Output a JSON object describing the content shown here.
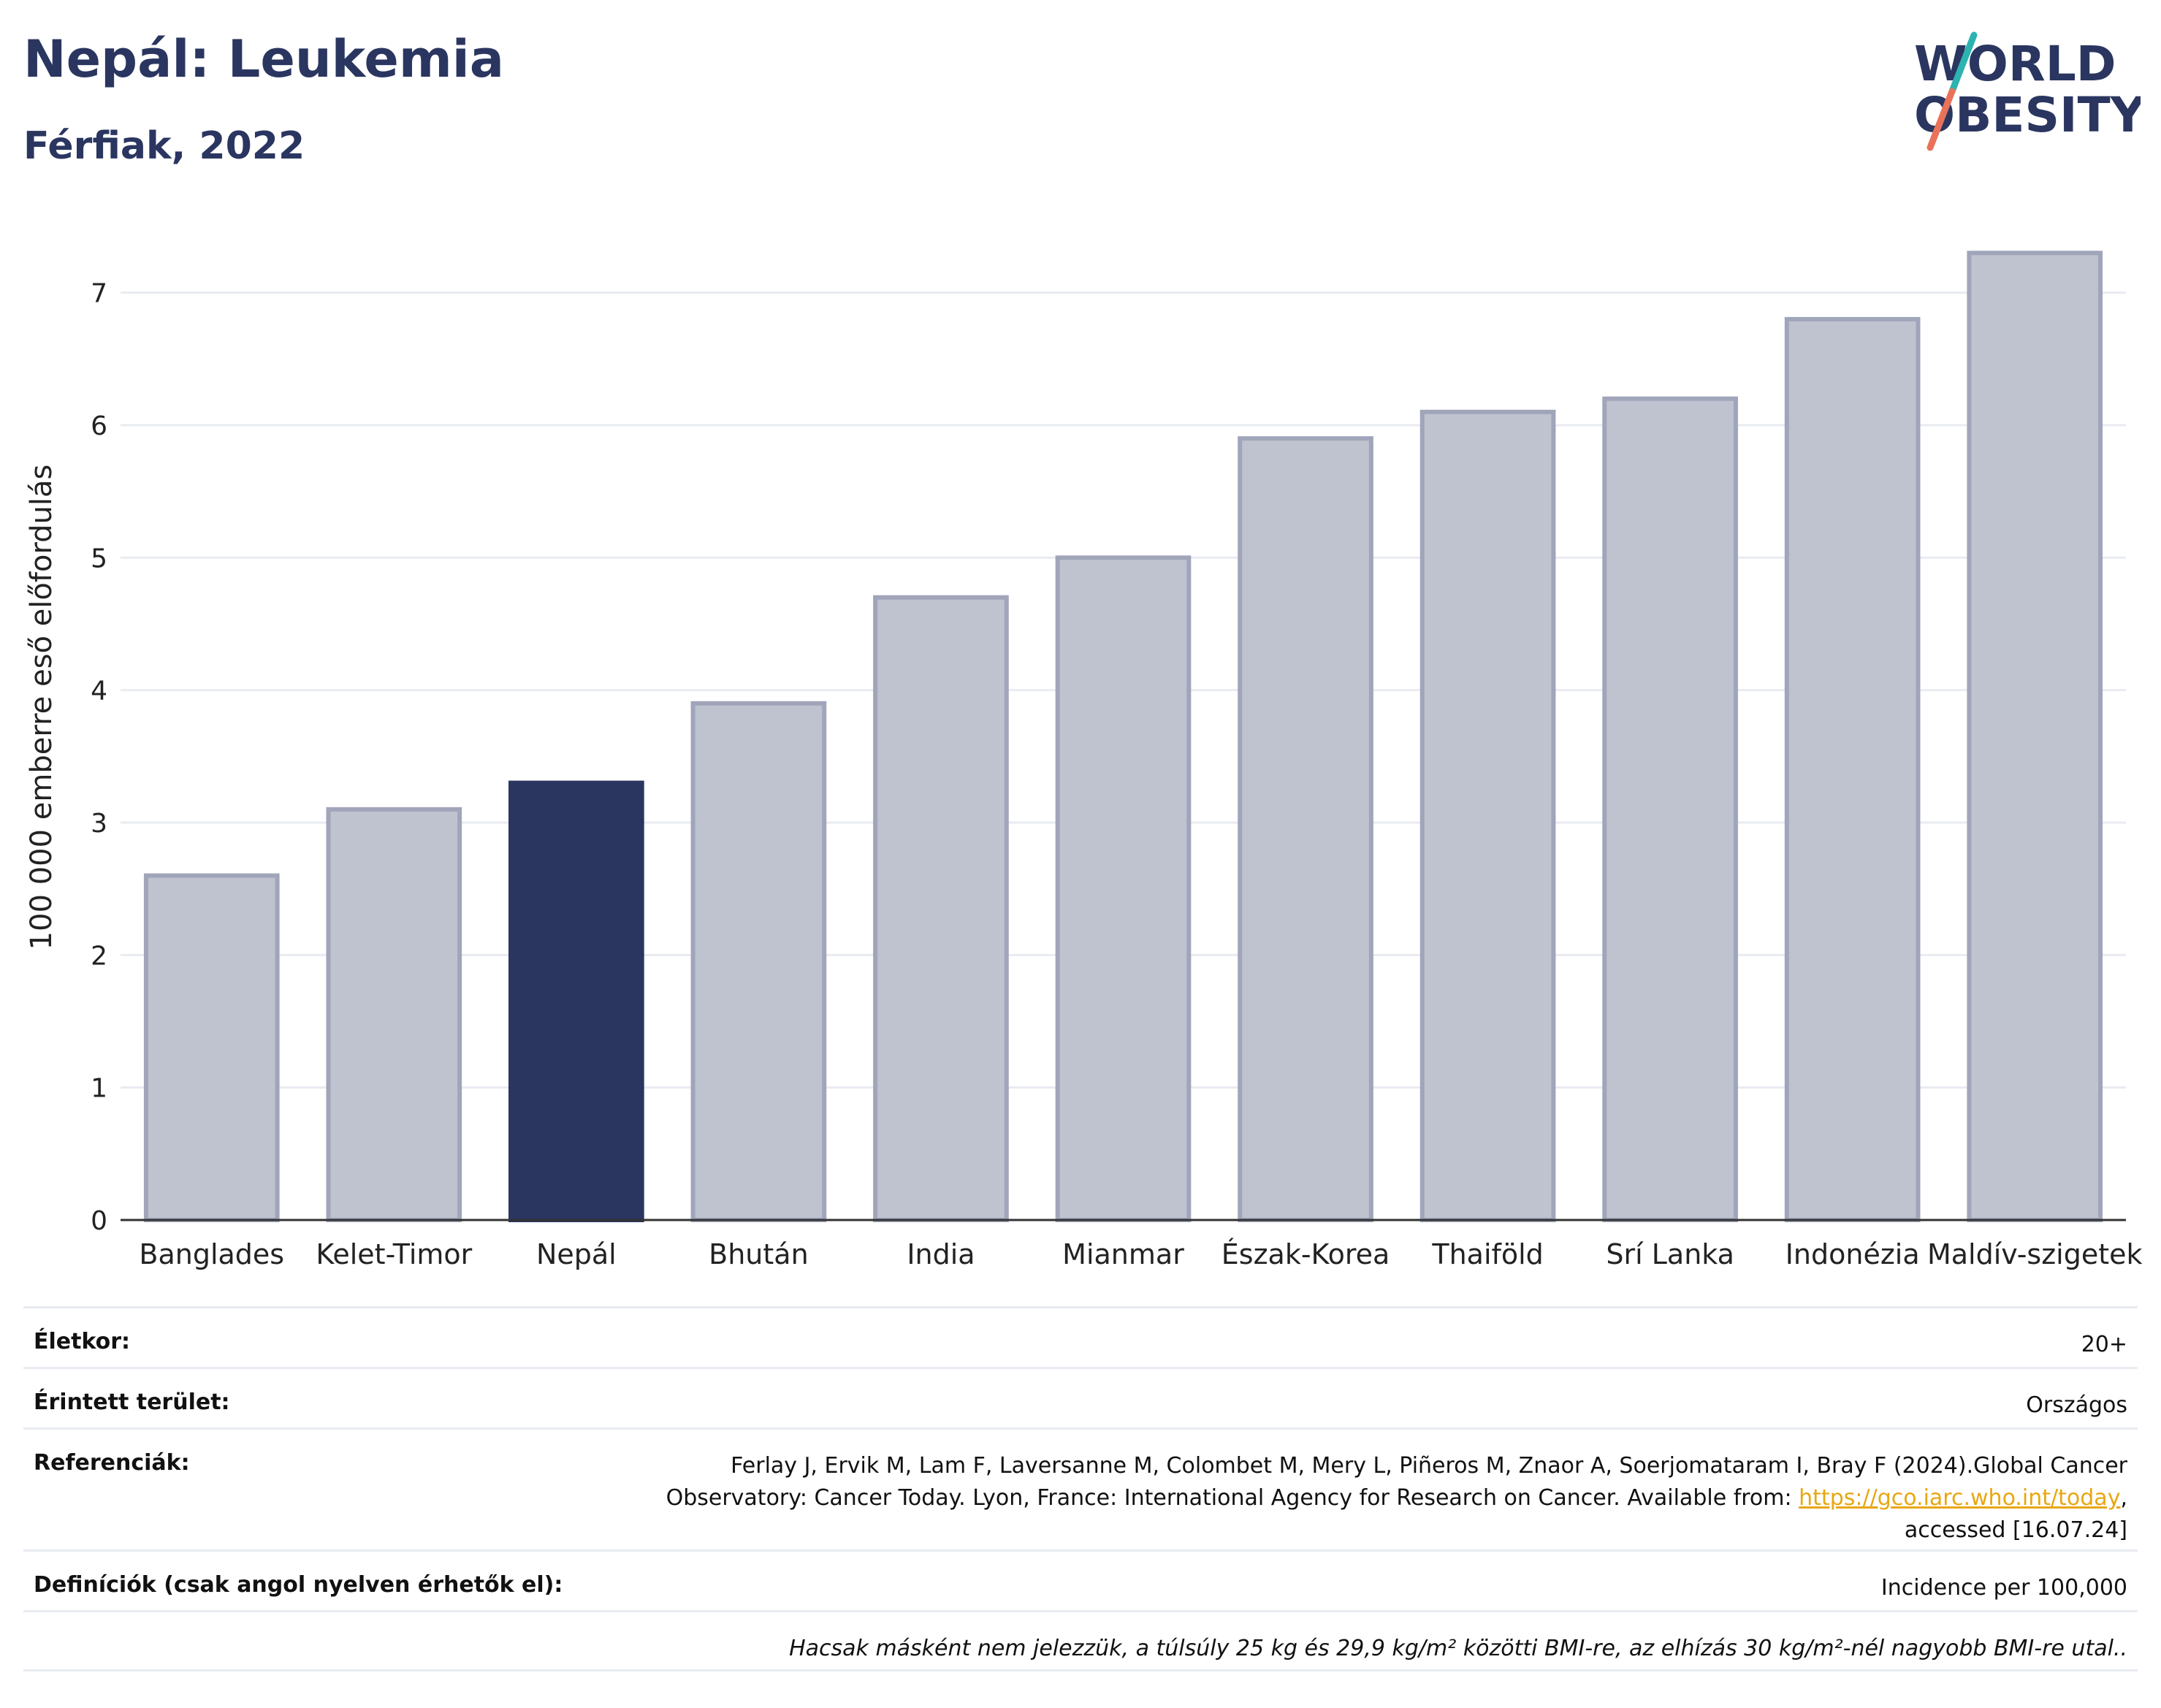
{
  "header": {
    "title": "Nepál: Leukemia",
    "subtitle": "Férfiak, 2022"
  },
  "logo": {
    "line1": "WORLD",
    "line2": "OBESITY"
  },
  "colors": {
    "highlight": "#2a3660",
    "bar": "#bfc2cf",
    "bar_edge": "#a0a5ba",
    "grid": "#e8ebf1",
    "logo_teal": "#2cb3b1",
    "logo_coral": "#e8735a"
  },
  "chart_data": {
    "type": "bar",
    "categories": [
      "Banglades",
      "Kelet-Timor",
      "Nepál",
      "Bhután",
      "India",
      "Mianmar",
      "Észak-Korea",
      "Thaiföld",
      "Srí Lanka",
      "Indonézia",
      "Maldív-szigetek"
    ],
    "values": [
      2.6,
      3.1,
      3.3,
      3.9,
      4.7,
      5.0,
      5.9,
      6.1,
      6.2,
      6.8,
      7.3
    ],
    "highlight": "Nepál",
    "ylabel": "100 000 emberre eső előfordulás",
    "xlabel": "",
    "ylim": [
      0,
      7.5
    ],
    "yticks": [
      0,
      1,
      2,
      3,
      4,
      5,
      6,
      7
    ],
    "grid": true
  },
  "info": {
    "age_label": "Életkor:",
    "age_value": "20+",
    "area_label": "Érintett terület:",
    "area_value": "Országos",
    "ref_label": "Referenciák:",
    "ref_text_1": "Ferlay J, Ervik M, Lam F, Laversanne M, Colombet M, Mery L, Piñeros M, Znaor A, Soerjomataram I, Bray F (2024).Global Cancer Observatory: Cancer Today. Lyon, France: International Agency for Research on Cancer. Available from: ",
    "ref_link": "https://gco.iarc.who.int/today",
    "ref_text_2": ", accessed [16.07.24]",
    "def_label": "Definíciók (csak angol nyelven érhetők el):",
    "def_value": "Incidence per 100,000",
    "note": "Hacsak másként nem jelezzük, a túlsúly 25 kg és 29,9 kg/m² közötti BMI-re, az elhízás 30 kg/m²-nél nagyobb BMI-re utal.."
  }
}
